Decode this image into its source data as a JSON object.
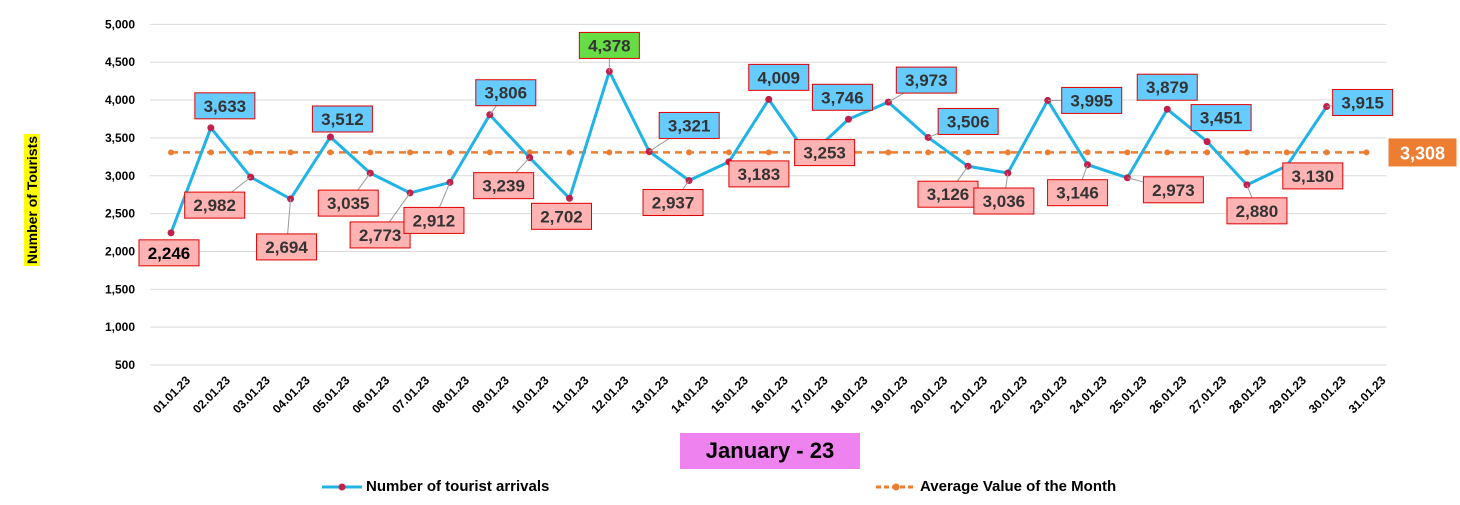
{
  "chart_data": {
    "type": "line",
    "ylabel": "Number of Tourists",
    "xlabel": "January - 23",
    "ylim": [
      500,
      5000
    ],
    "yticks": [
      500,
      1000,
      1500,
      2000,
      2500,
      3000,
      3500,
      4000,
      4500,
      5000
    ],
    "ytick_labels": [
      "500",
      "1,000",
      "1,500",
      "2,000",
      "2,500",
      "3,000",
      "3,500",
      "4,000",
      "4,500",
      "5,000"
    ],
    "grid": true,
    "legend_position": "bottom",
    "categories": [
      "01.01.23",
      "02.01.23",
      "03.01.23",
      "04.01.23",
      "05.01.23",
      "06.01.23",
      "07.01.23",
      "08.01.23",
      "09.01.23",
      "10.01.23",
      "11.01.23",
      "12.01.23",
      "13.01.23",
      "14.01.23",
      "15.01.23",
      "16.01.23",
      "17.01.23",
      "18.01.23",
      "19.01.23",
      "20.01.23",
      "21.01.23",
      "22.01.23",
      "23.01.23",
      "24.01.23",
      "25.01.23",
      "26.01.23",
      "27.01.23",
      "28.01.23",
      "29.01.23",
      "30.01.23",
      "31.01.23"
    ],
    "series": [
      {
        "name": "Number of tourist arrivals",
        "color": "#1fb3e6",
        "marker_color": "#c0204a",
        "values": [
          2246,
          3633,
          2982,
          2694,
          3512,
          3035,
          2773,
          2912,
          3806,
          3239,
          2702,
          4378,
          3321,
          2937,
          3183,
          4009,
          3253,
          3746,
          3973,
          3506,
          3126,
          3036,
          3995,
          3146,
          2973,
          3879,
          3451,
          2880,
          3130,
          3915,
          null
        ],
        "labels": [
          "2,246",
          "3,633",
          "2,982",
          "2,694",
          "3,512",
          "3,035",
          "2,773",
          "2,912",
          "3,806",
          "3,239",
          "2,702",
          "4,378",
          "3,321",
          "2,937",
          "3,183",
          "4,009",
          "3,253",
          "3,746",
          "3,973",
          "3,506",
          "3,126",
          "3,036",
          "3,995",
          "3,146",
          "2,973",
          "3,879",
          "3,451",
          "2,880",
          "3,130",
          "3,915",
          null
        ]
      },
      {
        "name": "Average Value of the Month",
        "color": "#ed7d31",
        "value": 3308,
        "label": "3,308"
      }
    ],
    "label_colors": {
      "above_avg_fill": "#66ccff",
      "below_avg_fill": "#ffb3b3",
      "max_fill": "#66dd44",
      "border": "#e00000"
    }
  }
}
